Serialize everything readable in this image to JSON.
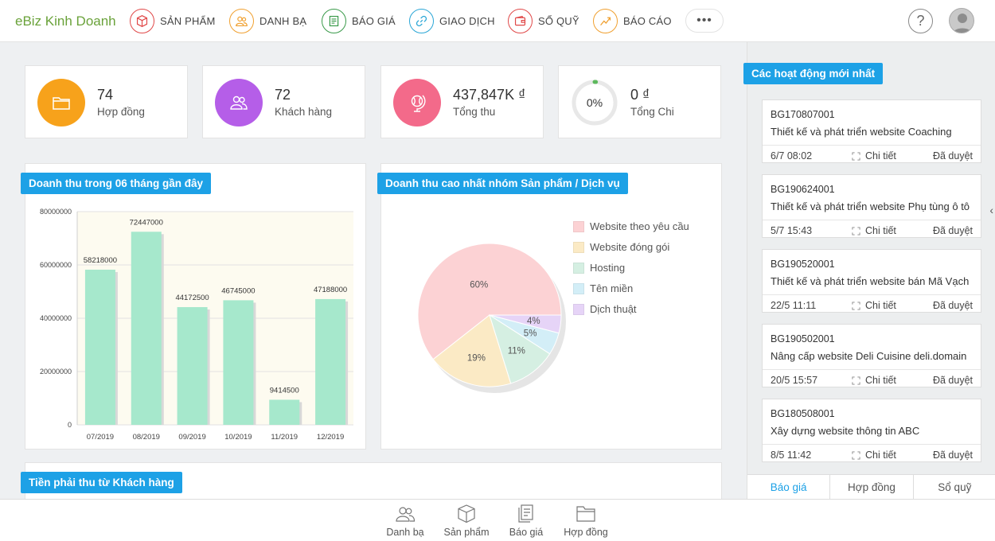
{
  "topbar": {
    "brand": "eBiz Kinh Doanh",
    "nav": [
      {
        "label": "SẢN PHẨM",
        "icon": "box-icon",
        "color": "#e04848"
      },
      {
        "label": "DANH BẠ",
        "icon": "contacts-icon",
        "color": "#f0a030"
      },
      {
        "label": "BÁO GIÁ",
        "icon": "quote-icon",
        "color": "#3a9a4a"
      },
      {
        "label": "GIAO DỊCH",
        "icon": "link-icon",
        "color": "#2aa6d6"
      },
      {
        "label": "SỔ QUỸ",
        "icon": "wallet-icon",
        "color": "#e04848"
      },
      {
        "label": "BÁO CÁO",
        "icon": "trend-icon",
        "color": "#f0a030"
      }
    ],
    "more_label": "•••",
    "help_label": "?"
  },
  "stats": [
    {
      "value": "74",
      "label": "Hợp đồng",
      "color": "#f7a21b",
      "icon": "folder-icon"
    },
    {
      "value": "72",
      "label": "Khách hàng",
      "color": "#b55ee8",
      "icon": "users-icon"
    },
    {
      "value": "437,847K ₫",
      "label": "Tổng thu",
      "color": "#f36a8a",
      "icon": "globe-icon"
    },
    {
      "value": "0 ₫",
      "label": "Tổng Chi",
      "ring_text": "0%",
      "ring_fraction": 0.01
    }
  ],
  "panels": {
    "revenue_title": "Doanh thu trong 06 tháng gần đây",
    "top_group_title": "Doanh thu cao nhất nhóm Sản phẩm / Dịch vụ",
    "receivable_title": "Tiền phải thu từ Khách hàng"
  },
  "chart_data": [
    {
      "type": "bar",
      "categories": [
        "07/2019",
        "08/2019",
        "09/2019",
        "10/2019",
        "11/2019",
        "12/2019"
      ],
      "values": [
        58218000,
        72447000,
        44172500,
        46745000,
        9414500,
        47188000
      ],
      "value_labels": [
        "58218000",
        "72447000",
        "44172500",
        "46745000",
        "9414500",
        "47188000"
      ],
      "y_ticks": [
        "0",
        "20000000",
        "40000000",
        "60000000",
        "80000000"
      ],
      "ylim": [
        0,
        80000000
      ],
      "bar_color": "#a6e8cc",
      "grid": true
    },
    {
      "type": "pie",
      "labels": [
        "Website theo yêu cầu",
        "Website đóng gói",
        "Hosting",
        "Tên miền",
        "Dịch thuật"
      ],
      "values": [
        60,
        19,
        11,
        5,
        4
      ],
      "value_labels": [
        "60%",
        "19%",
        "11%",
        "5%",
        "4%"
      ],
      "colors": [
        "#fcd2d4",
        "#fbeac5",
        "#d5efe2",
        "#d3eef7",
        "#e6d4f7"
      ],
      "legend_position": "right"
    }
  ],
  "activities": {
    "title": "Các hoạt động mới nhất",
    "detail_label": "Chi tiết",
    "items": [
      {
        "code": "BG170807001",
        "desc": "Thiết kế và phát triển website Coaching",
        "time": "6/7 08:02",
        "status": "Đã duyệt"
      },
      {
        "code": "BG190624001",
        "desc": "Thiết kế và phát triển website Phụ tùng ô tô",
        "time": "5/7 15:43",
        "status": "Đã duyệt"
      },
      {
        "code": "BG190520001",
        "desc": "Thiết kế và phát triển website bán Mã Vạch",
        "time": "22/5 11:11",
        "status": "Đã duyệt"
      },
      {
        "code": "BG190502001",
        "desc": "Nâng cấp website Deli Cuisine deli.domain",
        "time": "20/5 15:57",
        "status": "Đã duyệt"
      },
      {
        "code": "BG180508001",
        "desc": "Xây dựng website thông tin ABC",
        "time": "8/5 11:42",
        "status": "Đã duyệt"
      }
    ],
    "tabs": [
      "Báo giá",
      "Hợp đồng",
      "Sổ quỹ"
    ],
    "collapse_arrow": "‹"
  },
  "bottombar": [
    {
      "label": "Danh bạ",
      "icon": "contacts-icon"
    },
    {
      "label": "Sản phẩm",
      "icon": "box-icon"
    },
    {
      "label": "Báo giá",
      "icon": "quote-icon"
    },
    {
      "label": "Hợp đồng",
      "icon": "folder-icon"
    }
  ]
}
